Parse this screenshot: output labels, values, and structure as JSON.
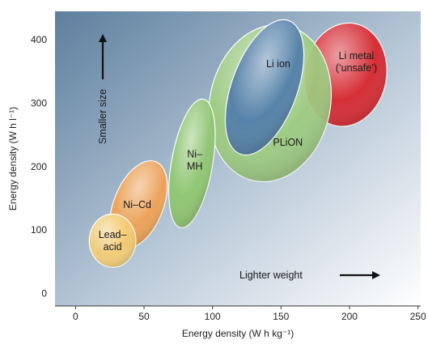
{
  "chart_data": {
    "type": "scatter",
    "title": "",
    "xlabel": "Energy density (W h kg⁻¹)",
    "ylabel": "Energy density (W h l⁻¹)",
    "xlim": [
      -15,
      252
    ],
    "ylim": [
      -20,
      445
    ],
    "xticks": [
      "0",
      "50",
      "100",
      "150",
      "200",
      "250"
    ],
    "xtick_values": [
      0,
      50,
      100,
      150,
      200,
      250
    ],
    "yticks": [
      "0",
      "100",
      "200",
      "300",
      "400"
    ],
    "ytick_values": [
      0,
      100,
      200,
      300,
      400
    ],
    "grid": false,
    "background_gradient": [
      "#5d7f9e",
      "#ffffff"
    ],
    "regions": [
      {
        "name": "Li metal (‘unsafe’)",
        "label_lines": [
          "Li metal",
          "(‘unsafe’)"
        ],
        "cx": 197,
        "cy": 345,
        "rx": 30,
        "ry": 82,
        "rotate": 10,
        "color": "#d8222a",
        "label_x": 205,
        "label_y": 365
      },
      {
        "name": "PLiON",
        "label_lines": [
          "PLiON"
        ],
        "cx": 142,
        "cy": 300,
        "rx": 44,
        "ry": 125,
        "rotate": 12,
        "color": "#9ccb7e",
        "label_x": 155,
        "label_y": 238
      },
      {
        "name": "Li ion",
        "label_lines": [
          "Li ion"
        ],
        "cx": 138,
        "cy": 325,
        "rx": 24,
        "ry": 112,
        "rotate": 20,
        "color": "#4f7ca9",
        "label_x": 148,
        "label_y": 362
      },
      {
        "name": "Ni–MH",
        "label_lines": [
          "Ni–",
          "MH"
        ],
        "cx": 85,
        "cy": 205,
        "rx": 15,
        "ry": 103,
        "rotate": 10,
        "color": "#8dc66c",
        "label_x": 87,
        "label_y": 210
      },
      {
        "name": "Ni–Cd",
        "label_lines": [
          "Ni–Cd"
        ],
        "cx": 46,
        "cy": 140,
        "rx": 18,
        "ry": 73,
        "rotate": 22,
        "color": "#f0a050",
        "label_x": 45,
        "label_y": 140
      },
      {
        "name": "Lead–acid",
        "label_lines": [
          "Lead–",
          "acid"
        ],
        "cx": 27,
        "cy": 83,
        "rx": 17,
        "ry": 42,
        "rotate": 0,
        "color": "#f4cc72",
        "label_x": 27,
        "label_y": 83
      }
    ],
    "annotations": [
      {
        "text": "Smaller size",
        "direction": "up"
      },
      {
        "text": "Lighter weight",
        "direction": "right"
      }
    ]
  }
}
